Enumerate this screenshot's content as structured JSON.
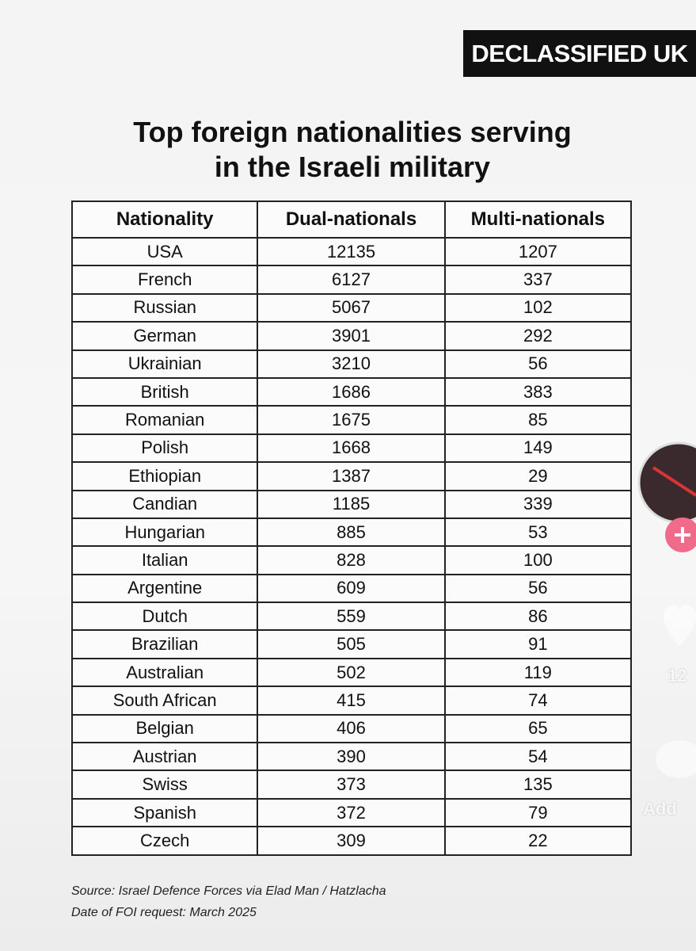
{
  "brand": "DECLASSIFIED UK",
  "title": [
    "Top foreign nationalities serving",
    "in the Israeli military"
  ],
  "table": {
    "columns": [
      "Nationality",
      "Dual-nationals",
      "Multi-nationals"
    ],
    "rows": [
      [
        "USA",
        12135,
        1207
      ],
      [
        "French",
        6127,
        337
      ],
      [
        "Russian",
        5067,
        102
      ],
      [
        "German",
        3901,
        292
      ],
      [
        "Ukrainian",
        3210,
        56
      ],
      [
        "British",
        1686,
        383
      ],
      [
        "Romanian",
        1675,
        85
      ],
      [
        "Polish",
        1668,
        149
      ],
      [
        "Ethiopian",
        1387,
        29
      ],
      [
        "Candian",
        1185,
        339
      ],
      [
        "Hungarian",
        885,
        53
      ],
      [
        "Italian",
        828,
        100
      ],
      [
        "Argentine",
        609,
        56
      ],
      [
        "Dutch",
        559,
        86
      ],
      [
        "Brazilian",
        505,
        91
      ],
      [
        "Australian",
        502,
        119
      ],
      [
        "South African",
        415,
        74
      ],
      [
        "Belgian",
        406,
        65
      ],
      [
        "Austrian",
        390,
        54
      ],
      [
        "Swiss",
        373,
        135
      ],
      [
        "Spanish",
        372,
        79
      ],
      [
        "Czech",
        309,
        22
      ]
    ]
  },
  "footer": {
    "source": "Source: Israel Defence Forces via Elad Man / Hatzlacha",
    "date": "Date of FOI request: March 2025"
  },
  "sidebar": {
    "like_count": "12",
    "comment_label": "Add"
  }
}
